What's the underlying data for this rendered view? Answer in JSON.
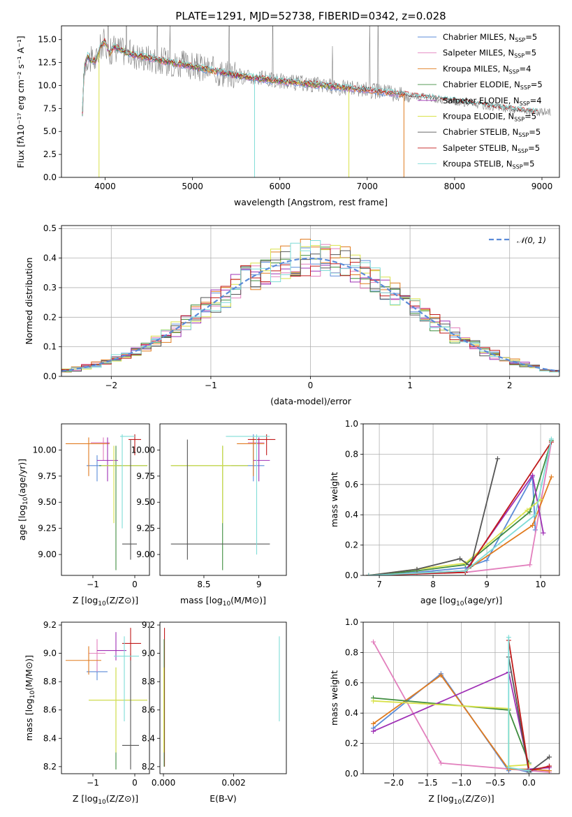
{
  "colors": [
    "#5b8bd8",
    "#e27fbd",
    "#e07b1f",
    "#3f8d3f",
    "#9f30b5",
    "#d9e24a",
    "#555555",
    "#c01a1a",
    "#7fdcd7"
  ],
  "chart_data": [
    {
      "id": "spectrum",
      "type": "line",
      "title": "PLATE=1291, MJD=52738, FIBERID=0342, z=0.028",
      "xlabel": "wavelength [Angstrom, rest frame]",
      "ylabel": "Flux [fλ10⁻¹⁷ erg cm⁻² s⁻¹ A⁻¹]",
      "xlim": [
        3500,
        9200
      ],
      "ylim": [
        0,
        16.5
      ],
      "xticks": [
        4000,
        5000,
        6000,
        7000,
        8000,
        9000
      ],
      "yticks": [
        0.0,
        2.5,
        5.0,
        7.5,
        10.0,
        12.5,
        15.0
      ],
      "observed_color": "#808080",
      "observed_envelope": {
        "x": [
          3750,
          3900,
          4000,
          4200,
          4500,
          4800,
          5000,
          5200,
          5500,
          6000,
          6500,
          7000,
          7200,
          7500,
          8000,
          8500,
          9000
        ],
        "y": [
          12.5,
          13.5,
          14.2,
          13.8,
          13.0,
          12.4,
          12.0,
          11.6,
          11.0,
          10.4,
          9.8,
          9.4,
          9.2,
          8.9,
          8.4,
          7.8,
          7.4
        ]
      },
      "series_shape": {
        "x": [
          3740,
          3760,
          3800,
          3850,
          3900,
          3950,
          4000,
          4050,
          4100,
          4200,
          4300,
          4500,
          4700,
          5000,
          5200,
          5500,
          6000,
          6500,
          7000,
          7500,
          8000,
          8500,
          8900
        ],
        "y": [
          7.0,
          12.0,
          13.2,
          12.6,
          12.8,
          14.3,
          14.8,
          13.5,
          14.2,
          13.8,
          13.4,
          13.0,
          12.6,
          12.1,
          11.7,
          11.1,
          10.5,
          10.0,
          9.5,
          8.9,
          8.3,
          7.6,
          7.1
        ]
      },
      "series": [
        {
          "name": "Chabrier MILES, Nₛₛₚ=5",
          "label_main": "Chabrier MILES, N",
          "label_sub": "SSP",
          "label_tail": "=5",
          "xmax": 7400
        },
        {
          "name": "Salpeter MILES, Nₛₛₚ=5",
          "label_main": "Salpeter MILES, N",
          "label_sub": "SSP",
          "label_tail": "=5",
          "xmax": 7400
        },
        {
          "name": "Kroupa MILES, Nₛₛₚ=4",
          "label_main": "Kroupa MILES, N",
          "label_sub": "SSP",
          "label_tail": "=4",
          "xmax": 7430
        },
        {
          "name": "Chabrier ELODIE, Nₛₛₚ=5",
          "label_main": "Chabrier ELODIE, N",
          "label_sub": "SSP",
          "label_tail": "=5",
          "xmax": 6800
        },
        {
          "name": "Salpeter ELODIE, Nₛₛₚ=4",
          "label_main": "Salpeter ELODIE, N",
          "label_sub": "SSP",
          "label_tail": "=4",
          "xmax": 6800
        },
        {
          "name": "Kroupa ELODIE, Nₛₛₚ=5",
          "label_main": "Kroupa ELODIE, N",
          "label_sub": "SSP",
          "label_tail": "=5",
          "xmax": 6800
        },
        {
          "name": "Chabrier STELIB, Nₛₛₚ=5",
          "label_main": "Chabrier STELIB, N",
          "label_sub": "SSP",
          "label_tail": "=5",
          "xmax": 8950
        },
        {
          "name": "Salpeter STELIB, Nₛₛₚ=5",
          "label_main": "Salpeter STELIB, N",
          "label_sub": "SSP",
          "label_tail": "=5",
          "xmax": 8950
        },
        {
          "name": "Kroupa STELIB, Nₛₛₚ=5",
          "label_main": "Kroupa STELIB, N",
          "label_sub": "SSP",
          "label_tail": "=5",
          "xmax": 8950
        }
      ],
      "legend": "top-right"
    },
    {
      "id": "residuals",
      "type": "histogram",
      "xlabel": "(data-model)/error",
      "ylabel": "Normed distribution",
      "xlim": [
        -2.5,
        2.5
      ],
      "ylim": [
        0,
        0.51
      ],
      "xticks": [
        -2,
        -1,
        0,
        1,
        2
      ],
      "yticks": [
        0.0,
        0.1,
        0.2,
        0.3,
        0.4,
        0.5
      ],
      "grid": true,
      "bins": [
        -2.5,
        -2.4,
        -2.3,
        -2.2,
        -2.1,
        -2.0,
        -1.9,
        -1.8,
        -1.7,
        -1.6,
        -1.5,
        -1.4,
        -1.3,
        -1.2,
        -1.1,
        -1.0,
        -0.9,
        -0.8,
        -0.7,
        -0.6,
        -0.5,
        -0.4,
        -0.3,
        -0.2,
        -0.1,
        0.0,
        0.1,
        0.2,
        0.3,
        0.4,
        0.5,
        0.6,
        0.7,
        0.8,
        0.9,
        1.0,
        1.1,
        1.2,
        1.3,
        1.4,
        1.5,
        1.6,
        1.7,
        1.8,
        1.9,
        2.0,
        2.1,
        2.2,
        2.3,
        2.4,
        2.5
      ],
      "reference": {
        "name": "𝒩(0, 1)",
        "style": "dashed",
        "color": "#5b8bd8"
      },
      "legend": "top-right"
    },
    {
      "id": "age-vs-Z",
      "type": "scatter",
      "xlabel_main": "Z [log",
      "xlabel_sub": "10",
      "xlabel_tail": "(Z/Z⊙)]",
      "ylabel_main": "age  [log",
      "ylabel_sub": "10",
      "ylabel_tail": "(age/yr)]",
      "xlim": [
        -1.75,
        0.35
      ],
      "ylim": [
        8.8,
        10.25
      ],
      "xticks": [
        -1,
        0
      ],
      "yticks": [
        9.0,
        9.25,
        9.5,
        9.75,
        10.0
      ],
      "points": [
        {
          "x": -0.9,
          "y": 9.85,
          "ex": [
            -1.15,
            0.3
          ],
          "ey": [
            9.7,
            9.95
          ],
          "c": 0
        },
        {
          "x": -0.75,
          "y": 10.07,
          "ex": [
            -1.05,
            -0.6
          ],
          "ey": [
            9.9,
            10.12
          ],
          "c": 1
        },
        {
          "x": -1.1,
          "y": 10.06,
          "ex": [
            -1.65,
            -0.6
          ],
          "ey": [
            9.75,
            10.12
          ],
          "c": 2
        },
        {
          "x": -0.45,
          "y": 9.85,
          "ex": [
            -0.85,
            0.3
          ],
          "ey": [
            8.85,
            10.04
          ],
          "c": 3
        },
        {
          "x": -0.65,
          "y": 9.9,
          "ex": [
            -0.9,
            -0.4
          ],
          "ey": [
            9.7,
            10.12
          ],
          "c": 4
        },
        {
          "x": -0.5,
          "y": 9.85,
          "ex": [
            -0.8,
            0.3
          ],
          "ey": [
            9.3,
            10.04
          ],
          "c": 5
        },
        {
          "x": -0.1,
          "y": 9.1,
          "ex": [
            -0.3,
            0.05
          ],
          "ey": [
            8.95,
            10.1
          ],
          "c": 6
        },
        {
          "x": 0.0,
          "y": 10.1,
          "ex": [
            -0.15,
            0.15
          ],
          "ey": [
            9.95,
            10.15
          ],
          "c": 7
        },
        {
          "x": -0.3,
          "y": 10.13,
          "ex": [
            -0.35,
            0.0
          ],
          "ey": [
            9.25,
            10.15
          ],
          "c": 8
        }
      ]
    },
    {
      "id": "age-vs-mass",
      "type": "scatter",
      "xlabel_main": "mass [log",
      "xlabel_sub": "10",
      "xlabel_tail": "(M/M⊙)]",
      "ylabel_main": "",
      "ylabel_sub": "",
      "ylabel_tail": "",
      "xlim": [
        8.1,
        9.25
      ],
      "ylim": [
        8.8,
        10.25
      ],
      "xticks": [
        8.5,
        9.0
      ],
      "yticks": [
        9.0,
        9.25,
        9.5,
        9.75,
        10.0
      ],
      "points": [
        {
          "x": 8.95,
          "y": 9.85,
          "ex": [
            8.75,
            9.05
          ],
          "ey": [
            9.7,
            10.15
          ],
          "c": 0
        },
        {
          "x": 9.0,
          "y": 10.07,
          "ex": [
            8.9,
            9.05
          ],
          "ey": [
            9.9,
            10.12
          ],
          "c": 1
        },
        {
          "x": 8.95,
          "y": 10.06,
          "ex": [
            8.8,
            9.05
          ],
          "ey": [
            9.75,
            10.12
          ],
          "c": 2
        },
        {
          "x": 8.67,
          "y": 9.85,
          "ex": [
            8.2,
            8.9
          ],
          "ey": [
            8.85,
            10.04
          ],
          "c": 3
        },
        {
          "x": 9.0,
          "y": 9.9,
          "ex": [
            8.95,
            9.1
          ],
          "ey": [
            9.7,
            10.12
          ],
          "c": 4
        },
        {
          "x": 8.67,
          "y": 9.85,
          "ex": [
            8.2,
            8.9
          ],
          "ey": [
            9.3,
            10.04
          ],
          "c": 5
        },
        {
          "x": 8.35,
          "y": 9.1,
          "ex": [
            8.2,
            9.1
          ],
          "ey": [
            8.95,
            10.1
          ],
          "c": 6
        },
        {
          "x": 9.07,
          "y": 10.1,
          "ex": [
            8.9,
            9.15
          ],
          "ey": [
            9.95,
            10.15
          ],
          "c": 7
        },
        {
          "x": 8.98,
          "y": 10.13,
          "ex": [
            8.7,
            9.1
          ],
          "ey": [
            9.0,
            10.15
          ],
          "c": 8
        }
      ]
    },
    {
      "id": "weight-vs-age",
      "type": "line",
      "xlabel_main": "age  [log",
      "xlabel_sub": "10",
      "xlabel_tail": "(age/yr)]",
      "ylabel_main": "mass weight",
      "ylabel_sub": "",
      "ylabel_tail": "",
      "xlim": [
        6.7,
        10.35
      ],
      "ylim": [
        0,
        1.0
      ],
      "xticks": [
        7,
        8,
        9,
        10
      ],
      "yticks": [
        0.0,
        0.2,
        0.4,
        0.6,
        0.8,
        1.0
      ],
      "series": [
        {
          "c": 0,
          "x": [
            6.8,
            7.7,
            8.6,
            9.0,
            9.85,
            9.9
          ],
          "y": [
            0.0,
            0.02,
            0.05,
            0.1,
            0.65,
            0.3
          ]
        },
        {
          "c": 1,
          "x": [
            6.8,
            8.6,
            9.8,
            10.2
          ],
          "y": [
            0.0,
            0.02,
            0.07,
            0.88
          ]
        },
        {
          "c": 2,
          "x": [
            6.8,
            8.6,
            9.85,
            10.2
          ],
          "y": [
            0.0,
            0.03,
            0.33,
            0.65
          ]
        },
        {
          "c": 3,
          "x": [
            6.8,
            7.7,
            8.6,
            9.8,
            10.2
          ],
          "y": [
            0.0,
            0.03,
            0.07,
            0.42,
            0.89
          ]
        },
        {
          "c": 4,
          "x": [
            6.8,
            8.6,
            9.85,
            10.05
          ],
          "y": [
            0.0,
            0.03,
            0.66,
            0.28
          ]
        },
        {
          "c": 5,
          "x": [
            6.8,
            7.7,
            8.6,
            9.75,
            10.0
          ],
          "y": [
            0.0,
            0.04,
            0.08,
            0.43,
            0.5
          ]
        },
        {
          "c": 6,
          "x": [
            6.8,
            7.7,
            8.5,
            8.7,
            9.2
          ],
          "y": [
            0.0,
            0.04,
            0.11,
            0.06,
            0.77
          ]
        },
        {
          "c": 7,
          "x": [
            6.8,
            8.6,
            10.2
          ],
          "y": [
            0.0,
            0.02,
            0.88
          ]
        },
        {
          "c": 8,
          "x": [
            6.8,
            8.6,
            9.9,
            10.2
          ],
          "y": [
            0.0,
            0.03,
            0.4,
            0.9
          ]
        }
      ]
    },
    {
      "id": "mass-vs-Z",
      "type": "scatter",
      "xlabel_main": "Z [log",
      "xlabel_sub": "10",
      "xlabel_tail": "(Z/Z⊙)]",
      "ylabel_main": "mass [log",
      "ylabel_sub": "10",
      "ylabel_tail": "(M/M⊙)]",
      "xlim": [
        -1.75,
        0.35
      ],
      "ylim": [
        8.15,
        9.22
      ],
      "xticks": [
        -1,
        0
      ],
      "yticks": [
        8.2,
        8.4,
        8.6,
        8.8,
        9.0,
        9.2
      ],
      "points": [
        {
          "x": -0.9,
          "y": 8.87,
          "ex": [
            -1.15,
            -0.65
          ],
          "ey": [
            8.81,
            8.95
          ],
          "c": 0
        },
        {
          "x": -0.9,
          "y": 9.0,
          "ex": [
            -1.1,
            -0.7
          ],
          "ey": [
            8.87,
            9.1
          ],
          "c": 1
        },
        {
          "x": -1.1,
          "y": 8.95,
          "ex": [
            -1.65,
            -0.8
          ],
          "ey": [
            8.85,
            9.05
          ],
          "c": 2
        },
        {
          "x": -0.45,
          "y": 8.67,
          "ex": [
            -1.1,
            0.3
          ],
          "ey": [
            8.18,
            8.9
          ],
          "c": 3
        },
        {
          "x": -0.45,
          "y": 9.02,
          "ex": [
            -0.9,
            -0.2
          ],
          "ey": [
            8.95,
            9.15
          ],
          "c": 4
        },
        {
          "x": -0.45,
          "y": 8.67,
          "ex": [
            -1.1,
            0.3
          ],
          "ey": [
            8.3,
            8.9
          ],
          "c": 5
        },
        {
          "x": -0.1,
          "y": 8.35,
          "ex": [
            -0.3,
            0.1
          ],
          "ey": [
            8.18,
            9.0
          ],
          "c": 6
        },
        {
          "x": -0.1,
          "y": 9.07,
          "ex": [
            -0.3,
            0.15
          ],
          "ey": [
            8.95,
            9.18
          ],
          "c": 7
        },
        {
          "x": -0.25,
          "y": 8.98,
          "ex": [
            -0.5,
            0.1
          ],
          "ey": [
            8.52,
            9.12
          ],
          "c": 8
        }
      ]
    },
    {
      "id": "mass-vs-EBV",
      "type": "scatter",
      "xlabel_main": "E(B-V)",
      "xlabel_sub": "",
      "xlabel_tail": "",
      "ylabel_main": "",
      "ylabel_sub": "",
      "ylabel_tail": "",
      "xlim": [
        -0.0001,
        0.0035
      ],
      "ylim": [
        8.15,
        9.22
      ],
      "xticks": [
        0.0,
        0.002
      ],
      "xtick_labels": [
        "0.000",
        "0.002"
      ],
      "yticks": [
        8.2,
        8.4,
        8.6,
        8.8,
        9.0,
        9.2
      ],
      "points": [
        {
          "x": 3e-05,
          "y": 8.6,
          "ex": [
            3e-05,
            3e-05
          ],
          "ey": [
            8.2,
            9.18
          ],
          "c": 7
        },
        {
          "x": 2e-05,
          "y": 8.6,
          "ex": [
            2e-05,
            2e-05
          ],
          "ey": [
            8.2,
            9.1
          ],
          "c": 3
        },
        {
          "x": 1e-05,
          "y": 8.6,
          "ex": [
            1e-05,
            1e-05
          ],
          "ey": [
            8.3,
            8.9
          ],
          "c": 5
        },
        {
          "x": 0.0033,
          "y": 8.85,
          "ex": [
            0.0033,
            0.0033
          ],
          "ey": [
            8.52,
            9.12
          ],
          "c": 8
        }
      ]
    },
    {
      "id": "weight-vs-Z",
      "type": "line",
      "xlabel_main": "Z [log",
      "xlabel_sub": "10",
      "xlabel_tail": "(Z/Z⊙)]",
      "ylabel_main": "mass weight",
      "ylabel_sub": "",
      "ylabel_tail": "",
      "xlim": [
        -2.45,
        0.45
      ],
      "ylim": [
        0,
        1.0
      ],
      "xticks": [
        -2.0,
        -1.5,
        -1.0,
        -0.5,
        0.0
      ],
      "xtick_labels": [
        "−2.0",
        "−1.5",
        "−1.0",
        "−0.5",
        "0.0"
      ],
      "yticks": [
        0.0,
        0.2,
        0.4,
        0.6,
        0.8,
        1.0
      ],
      "series": [
        {
          "c": 0,
          "x": [
            -2.3,
            -1.3,
            -0.3,
            -0.3,
            0.0,
            0.3
          ],
          "y": [
            0.3,
            0.66,
            0.02,
            0.04,
            0.01,
            0.05
          ]
        },
        {
          "c": 1,
          "x": [
            -2.3,
            -1.3,
            0.0,
            0.3
          ],
          "y": [
            0.87,
            0.07,
            0.02,
            0.01
          ]
        },
        {
          "c": 2,
          "x": [
            -2.3,
            -1.3,
            -0.3,
            0.0,
            0.3
          ],
          "y": [
            0.33,
            0.65,
            0.03,
            0.03,
            0.02
          ]
        },
        {
          "c": 3,
          "x": [
            -2.3,
            -0.3,
            0.0
          ],
          "y": [
            0.5,
            0.42,
            0.07
          ]
        },
        {
          "c": 4,
          "x": [
            -2.3,
            -0.3,
            0.0,
            0.3
          ],
          "y": [
            0.28,
            0.67,
            0.03,
            0.04
          ]
        },
        {
          "c": 5,
          "x": [
            -2.3,
            -0.3,
            -0.3,
            0.0
          ],
          "y": [
            0.48,
            0.43,
            0.05,
            0.06
          ]
        },
        {
          "c": 6,
          "x": [
            -0.3,
            0.0,
            0.3
          ],
          "y": [
            0.77,
            0.01,
            0.11
          ]
        },
        {
          "c": 7,
          "x": [
            -0.3,
            0.0,
            0.3
          ],
          "y": [
            0.88,
            0.02,
            0.05
          ]
        },
        {
          "c": 8,
          "x": [
            -0.3,
            -0.3,
            0.0
          ],
          "y": [
            0.9,
            0.04,
            0.02
          ]
        }
      ]
    }
  ]
}
